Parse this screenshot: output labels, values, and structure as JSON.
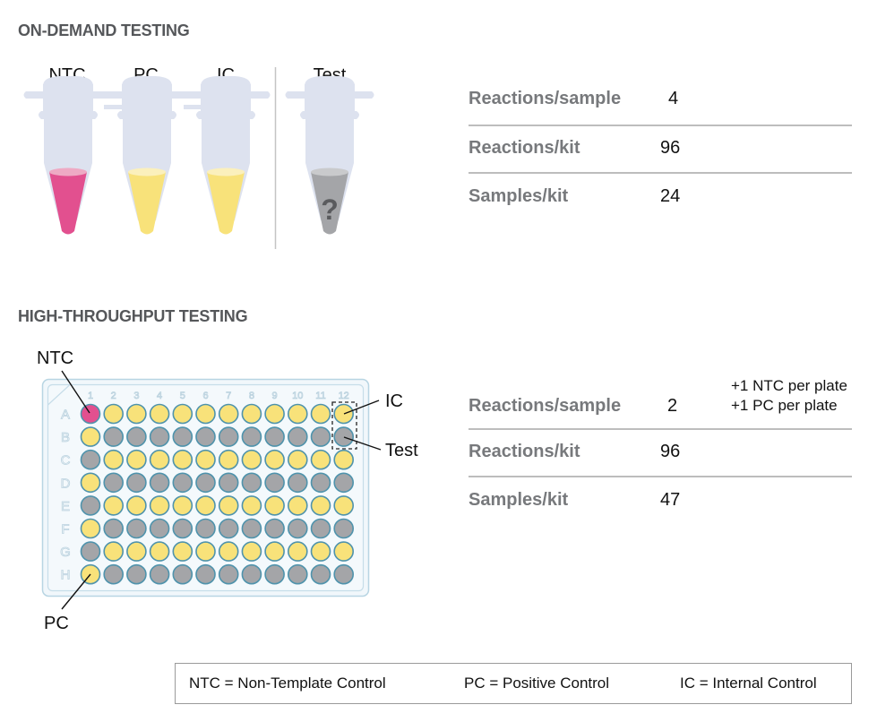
{
  "colors": {
    "ntc_pink": "#e2508f",
    "ntc_pink_top": "#eeaac4",
    "control_yellow": "#f8e27a",
    "control_yellow_top": "#fbf0bc",
    "test_gray": "#a4a5a8",
    "test_gray_top": "#c9cacc",
    "tube_body": "#dde2ef",
    "plate_fill": "#f1f7fb",
    "plate_border": "#b8d5e3",
    "well_border": "#4f93ac",
    "title_gray": "#55575a",
    "label_gray": "#77797c",
    "divider": "#bdbdbd"
  },
  "on_demand": {
    "title": "ON-DEMAND TESTING",
    "tubes": [
      {
        "label": "NTC",
        "content": "ntc"
      },
      {
        "label": "PC",
        "content": "control"
      },
      {
        "label": "IC",
        "content": "control"
      },
      {
        "label": "Test",
        "content": "unknown",
        "mark": "?"
      }
    ],
    "stats": [
      {
        "label": "Reactions/sample",
        "value": "4",
        "note": ""
      },
      {
        "label": "Reactions/kit",
        "value": "96",
        "note": ""
      },
      {
        "label": "Samples/kit",
        "value": "24",
        "note": ""
      }
    ]
  },
  "high_throughput": {
    "title": "HIGH-THROUGHPUT TESTING",
    "plate": {
      "columns": [
        "1",
        "2",
        "3",
        "4",
        "5",
        "6",
        "7",
        "8",
        "9",
        "10",
        "11",
        "12"
      ],
      "rows": [
        "A",
        "B",
        "C",
        "D",
        "E",
        "F",
        "G",
        "H"
      ],
      "layout_note": "A1 = NTC (pink); H1 = PC; yellow = IC wells; gray = Test wells; column 1 alternates yellow/gray from B; columns 2-12 alternate by row starting yellow in A"
    },
    "callouts": {
      "ntc": "NTC",
      "ic": "IC",
      "test": "Test",
      "pc": "PC"
    },
    "stats": [
      {
        "label": "Reactions/sample",
        "value": "2",
        "note_lines": [
          "+1 NTC per plate",
          "+1 PC per plate"
        ]
      },
      {
        "label": "Reactions/kit",
        "value": "96",
        "note_lines": []
      },
      {
        "label": "Samples/kit",
        "value": "47",
        "note_lines": []
      }
    ]
  },
  "legend": [
    "NTC = Non-Template Control",
    "PC = Positive Control",
    "IC = Internal Control"
  ]
}
